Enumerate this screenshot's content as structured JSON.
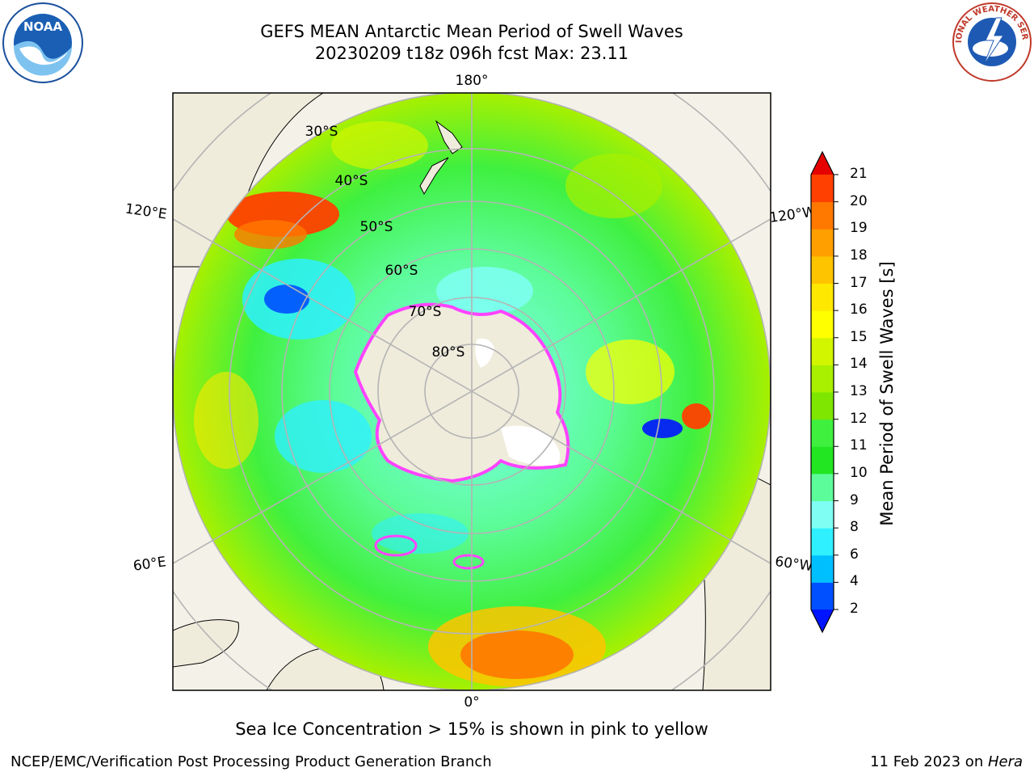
{
  "title": {
    "line1": "GEFS MEAN Antarctic Mean Period of Swell Waves",
    "line2": "20230209 t18z 096h fcst   Max: 23.11"
  },
  "map": {
    "projection": "south-polar-stereographic",
    "longitude_labels": [
      {
        "id": "lon-180",
        "text": "180°"
      },
      {
        "id": "lon-0",
        "text": "0°"
      },
      {
        "id": "lon-120e",
        "text": "120°E"
      },
      {
        "id": "lon-60e",
        "text": "60°E"
      },
      {
        "id": "lon-120w",
        "text": "120°W"
      },
      {
        "id": "lon-60w",
        "text": "60°W"
      }
    ],
    "latitude_labels": [
      "30°S",
      "40°S",
      "50°S",
      "60°S",
      "70°S",
      "80°S"
    ],
    "colors": {
      "land": "#efecdc",
      "grid": "#b4b4b4",
      "sea_ice": "#ff44ff",
      "ice_shelf": "#ffffff"
    }
  },
  "colorbar": {
    "label": "Mean Period of Swell Waves [s]",
    "ticks": [
      "2",
      "4",
      "6",
      "8",
      "9",
      "10",
      "11",
      "12",
      "13",
      "14",
      "15",
      "16",
      "17",
      "18",
      "19",
      "20",
      "21"
    ],
    "colors": [
      "#0050ff",
      "#00bfff",
      "#2ef0ff",
      "#7ffff4",
      "#5dfc9a",
      "#22e622",
      "#3ff03f",
      "#7ee600",
      "#a8f000",
      "#d2f500",
      "#ffff00",
      "#ffe800",
      "#ffc400",
      "#ffa000",
      "#ff7800",
      "#ff4000"
    ],
    "extend_low_color": "#0014ff",
    "extend_high_color": "#e60000"
  },
  "caption": "Sea Ice Concentration > 15% is shown in pink to yellow",
  "footer": {
    "left": "NCEP/EMC/Verification Post Processing Product Generation Branch",
    "right_date": "11 Feb 2023 on ",
    "right_host": "Hera"
  },
  "logos": {
    "noaa_text": "NOAA",
    "nws_text": "NATIONAL WEATHER SERVICE"
  }
}
